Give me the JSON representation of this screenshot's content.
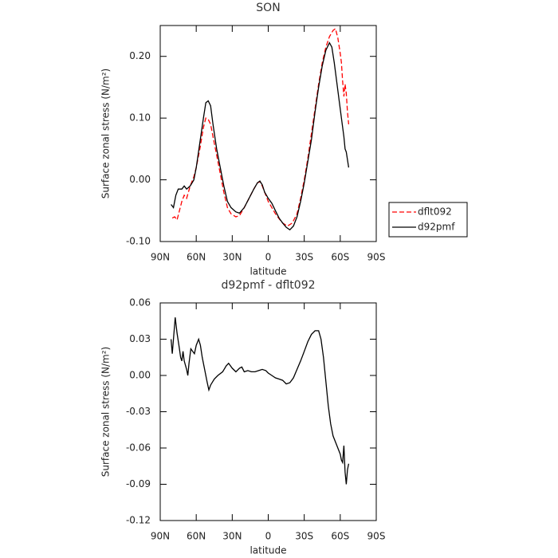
{
  "chart_data": [
    {
      "type": "line",
      "title": "SON",
      "xlabel": "latitude",
      "ylabel": "Surface zonal stress (N/m²)",
      "xlim": [
        90,
        -90
      ],
      "xticks": [
        {
          "value": 90,
          "label": "90N"
        },
        {
          "value": 60,
          "label": "60N"
        },
        {
          "value": 30,
          "label": "30N"
        },
        0,
        {
          "value": -30,
          "label": "30S"
        },
        {
          "value": -60,
          "label": "60S"
        },
        {
          "value": -90,
          "label": "90S"
        }
      ],
      "ylim": [
        -0.1,
        0.25
      ],
      "yticks": [
        {
          "value": -0.1,
          "label": "-0.10"
        },
        {
          "value": 0,
          "label": "0.00"
        },
        {
          "value": 0.1,
          "label": "0.10"
        },
        {
          "value": 0.2,
          "label": "0.20"
        }
      ],
      "legend": "right",
      "series": [
        {
          "name": "dflt092",
          "color": "#ff0000",
          "dashed": true,
          "x": [
            80,
            78,
            76,
            74,
            72,
            70,
            68,
            65,
            62,
            60,
            57,
            54,
            52,
            50,
            48,
            46,
            43,
            40,
            37,
            34,
            31,
            27,
            24,
            20,
            16,
            12,
            9,
            7,
            5,
            3,
            0,
            -3,
            -6,
            -9,
            -12,
            -16,
            -20,
            -24,
            -27,
            -30,
            -33,
            -36,
            -39,
            -42,
            -45,
            -48,
            -51,
            -54,
            -56,
            -58,
            -60,
            -61,
            -62,
            -63,
            -64,
            -65,
            -66,
            -67
          ],
          "values": [
            -0.062,
            -0.06,
            -0.065,
            -0.05,
            -0.035,
            -0.025,
            -0.03,
            -0.01,
            0.005,
            0.02,
            0.05,
            0.085,
            0.1,
            0.098,
            0.09,
            0.07,
            0.04,
            0.01,
            -0.02,
            -0.045,
            -0.055,
            -0.06,
            -0.058,
            -0.045,
            -0.03,
            -0.015,
            -0.005,
            -0.003,
            -0.01,
            -0.02,
            -0.035,
            -0.045,
            -0.055,
            -0.063,
            -0.07,
            -0.075,
            -0.07,
            -0.055,
            -0.03,
            0.0,
            0.035,
            0.075,
            0.115,
            0.155,
            0.19,
            0.215,
            0.232,
            0.242,
            0.245,
            0.23,
            0.205,
            0.19,
            0.16,
            0.135,
            0.155,
            0.14,
            0.11,
            0.09
          ]
        },
        {
          "name": "d92pmf",
          "color": "#000000",
          "dashed": false,
          "x": [
            81,
            79,
            77,
            75,
            72,
            70,
            68,
            65,
            62,
            60,
            57,
            54,
            52,
            50,
            48,
            46,
            43,
            40,
            37,
            34,
            31,
            27,
            24,
            20,
            16,
            12,
            9,
            7,
            5,
            3,
            0,
            -3,
            -6,
            -9,
            -12,
            -15,
            -18,
            -21,
            -24,
            -27,
            -30,
            -33,
            -36,
            -39,
            -42,
            -45,
            -48,
            -51,
            -53,
            -55,
            -57,
            -59,
            -61,
            -63,
            -64,
            -65,
            -67
          ],
          "values": [
            -0.04,
            -0.045,
            -0.025,
            -0.015,
            -0.015,
            -0.01,
            -0.015,
            -0.01,
            0.0,
            0.02,
            0.06,
            0.1,
            0.125,
            0.128,
            0.12,
            0.09,
            0.05,
            0.02,
            -0.01,
            -0.035,
            -0.045,
            -0.052,
            -0.054,
            -0.045,
            -0.03,
            -0.015,
            -0.005,
            -0.002,
            -0.008,
            -0.02,
            -0.03,
            -0.038,
            -0.05,
            -0.062,
            -0.07,
            -0.077,
            -0.081,
            -0.075,
            -0.06,
            -0.035,
            -0.005,
            0.03,
            0.065,
            0.11,
            0.15,
            0.185,
            0.21,
            0.222,
            0.215,
            0.19,
            0.16,
            0.13,
            0.1,
            0.07,
            0.05,
            0.045,
            0.02
          ]
        }
      ]
    },
    {
      "type": "line",
      "title": "d92pmf - dflt092",
      "xlabel": "latitude",
      "ylabel": "Surface zonal stress (N/m²)",
      "xlim": [
        90,
        -90
      ],
      "xticks": [
        {
          "value": 90,
          "label": "90N"
        },
        {
          "value": 60,
          "label": "60N"
        },
        {
          "value": 30,
          "label": "30N"
        },
        0,
        {
          "value": -30,
          "label": "30S"
        },
        {
          "value": -60,
          "label": "60S"
        },
        {
          "value": -90,
          "label": "90S"
        }
      ],
      "ylim": [
        -0.12,
        0.06
      ],
      "yticks": [
        {
          "value": -0.12,
          "label": "-0.12"
        },
        {
          "value": -0.09,
          "label": "-0.09"
        },
        {
          "value": -0.06,
          "label": "-0.06"
        },
        {
          "value": -0.03,
          "label": "-0.03"
        },
        {
          "value": 0,
          "label": "0.00"
        },
        {
          "value": 0.03,
          "label": "0.03"
        },
        {
          "value": 0.06,
          "label": "0.06"
        }
      ],
      "series": [
        {
          "color": "#000000",
          "dashed": false,
          "x": [
            81,
            80,
            79,
            77.5,
            76,
            74,
            73,
            72,
            71,
            70,
            68,
            67,
            66,
            64.5,
            63,
            61.5,
            60,
            58,
            56.5,
            55,
            53,
            51,
            49.5,
            48,
            45,
            42,
            38,
            35,
            33,
            30,
            27,
            24,
            22,
            20,
            17,
            14,
            11,
            8,
            5,
            2,
            0,
            -3,
            -6,
            -9,
            -12,
            -15,
            -18,
            -21,
            -24,
            -27,
            -30,
            -33,
            -36,
            -39,
            -42,
            -44,
            -46,
            -48,
            -50,
            -52,
            -54,
            -56,
            -58,
            -60,
            -61,
            -62,
            -63,
            -64,
            -65,
            -66,
            -67
          ],
          "values": [
            0.03,
            0.018,
            0.03,
            0.048,
            0.035,
            0.022,
            0.015,
            0.012,
            0.02,
            0.012,
            0.005,
            0.0,
            0.01,
            0.022,
            0.02,
            0.018,
            0.025,
            0.03,
            0.025,
            0.015,
            0.005,
            -0.005,
            -0.012,
            -0.008,
            -0.003,
            0.0,
            0.003,
            0.008,
            0.01,
            0.006,
            0.003,
            0.006,
            0.007,
            0.003,
            0.004,
            0.003,
            0.003,
            0.004,
            0.005,
            0.004,
            0.002,
            0.0,
            -0.002,
            -0.003,
            -0.004,
            -0.007,
            -0.006,
            -0.002,
            0.005,
            0.012,
            0.02,
            0.028,
            0.034,
            0.037,
            0.037,
            0.03,
            0.015,
            -0.005,
            -0.025,
            -0.04,
            -0.05,
            -0.055,
            -0.06,
            -0.065,
            -0.07,
            -0.072,
            -0.058,
            -0.08,
            -0.09,
            -0.078,
            -0.073
          ]
        }
      ]
    }
  ]
}
